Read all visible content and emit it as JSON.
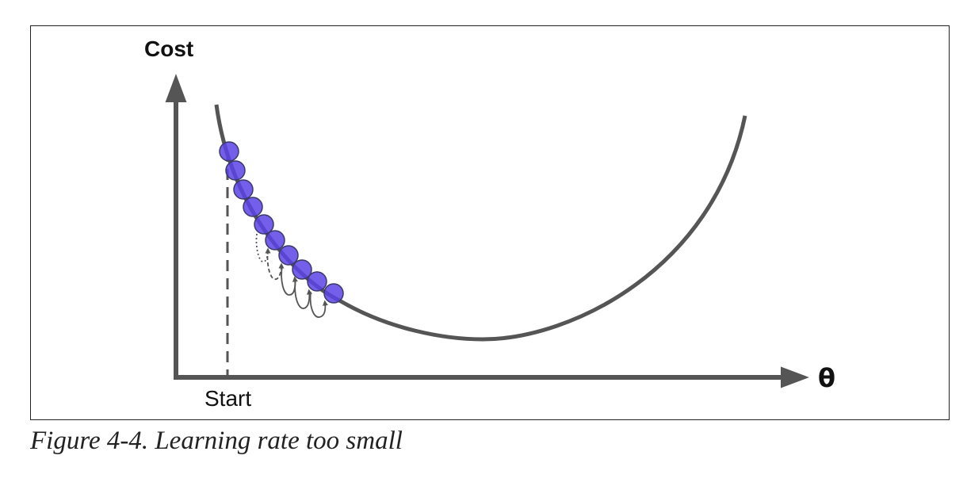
{
  "diagram": {
    "y_axis_label": "Cost",
    "x_axis_label": "θ",
    "start_label": "Start",
    "step_count": 10
  },
  "caption": "Figure 4-4. Learning rate too small",
  "colors": {
    "curve": "#555555",
    "axes": "#555555",
    "point_fill": "#5b43e6",
    "point_stroke": "#3a3a6a",
    "frame": "#222222"
  }
}
